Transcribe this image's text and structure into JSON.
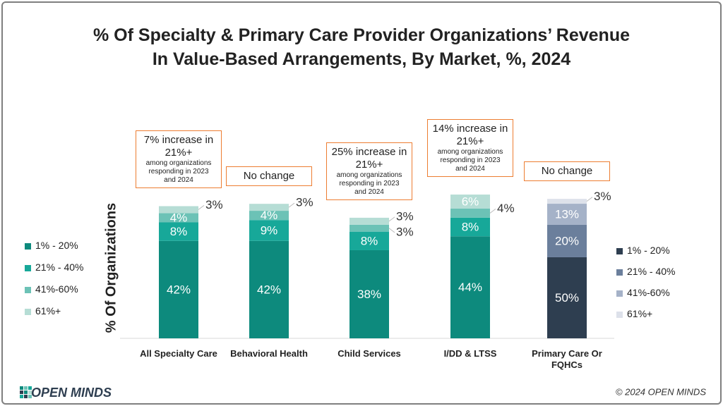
{
  "title_lines": [
    "% Of Specialty & Primary Care Provider Organizations’ Revenue",
    "In Value-Based Arrangements, By Market, %, 2024"
  ],
  "footer": {
    "logo": "OPEN MINDS",
    "copyright": "© 2024 OPEN MINDS"
  },
  "chart_data": [
    {
      "type": "bar",
      "stacked": true,
      "y_label": "% Of Organizations",
      "categories": [
        "All Specialty Care",
        "Behavioral Health",
        "Child Services",
        "I/DD & LTSS"
      ],
      "ylim": [
        0,
        100
      ],
      "legend": "left",
      "series": [
        {
          "name": "1% - 20%",
          "color": "#0d8a7d",
          "values": [
            42,
            42,
            38,
            44
          ],
          "value_labels": [
            "42%",
            "42%",
            "38%",
            "44%"
          ],
          "outside": [
            false,
            false,
            false,
            false
          ]
        },
        {
          "name": "21% - 40%",
          "color": "#17a899",
          "values": [
            8,
            9,
            8,
            8
          ],
          "value_labels": [
            "8%",
            "9%",
            "8%",
            "8%"
          ],
          "outside": [
            false,
            false,
            false,
            false
          ]
        },
        {
          "name": "41%-60%",
          "color": "#6cc2b6",
          "values": [
            4,
            4,
            3,
            4
          ],
          "value_labels": [
            "4%",
            "4%",
            "3%",
            "4%"
          ],
          "outside": [
            false,
            false,
            true,
            true
          ]
        },
        {
          "name": "61%+",
          "color": "#b6ddd5",
          "values": [
            3,
            3,
            3,
            6
          ],
          "value_labels": [
            "3%",
            "3%",
            "3%",
            "6%"
          ],
          "outside": [
            true,
            true,
            true,
            false
          ]
        }
      ],
      "annotations": [
        {
          "text": "7% increase in 21%+",
          "note": "among organizations responding in 2023 and 2024"
        },
        {
          "text": "No change"
        },
        {
          "text": "25% increase in 21%+",
          "note": "among organizations responding in 2023 and 2024"
        },
        {
          "text": "14% increase in 21%+",
          "note": "among organizations responding in 2023 and 2024"
        }
      ]
    },
    {
      "type": "bar",
      "stacked": true,
      "categories": [
        "Primary Care Or FQHCs"
      ],
      "ylim": [
        0,
        143
      ],
      "legend": "right",
      "series": [
        {
          "name": "1% - 20%",
          "color": "#2e3e50",
          "values": [
            50
          ],
          "value_labels": [
            "50%"
          ],
          "outside": [
            false
          ]
        },
        {
          "name": "21% - 40%",
          "color": "#6b7f9c",
          "values": [
            20
          ],
          "value_labels": [
            "20%"
          ],
          "outside": [
            false
          ]
        },
        {
          "name": "41%-60%",
          "color": "#a5b2c8",
          "values": [
            13
          ],
          "value_labels": [
            "13%"
          ],
          "outside": [
            false
          ]
        },
        {
          "name": "61%+",
          "color": "#dde1ea",
          "values": [
            3
          ],
          "value_labels": [
            "3%"
          ],
          "outside": [
            true
          ]
        }
      ],
      "annotations": [
        {
          "text": "No change"
        }
      ]
    }
  ]
}
